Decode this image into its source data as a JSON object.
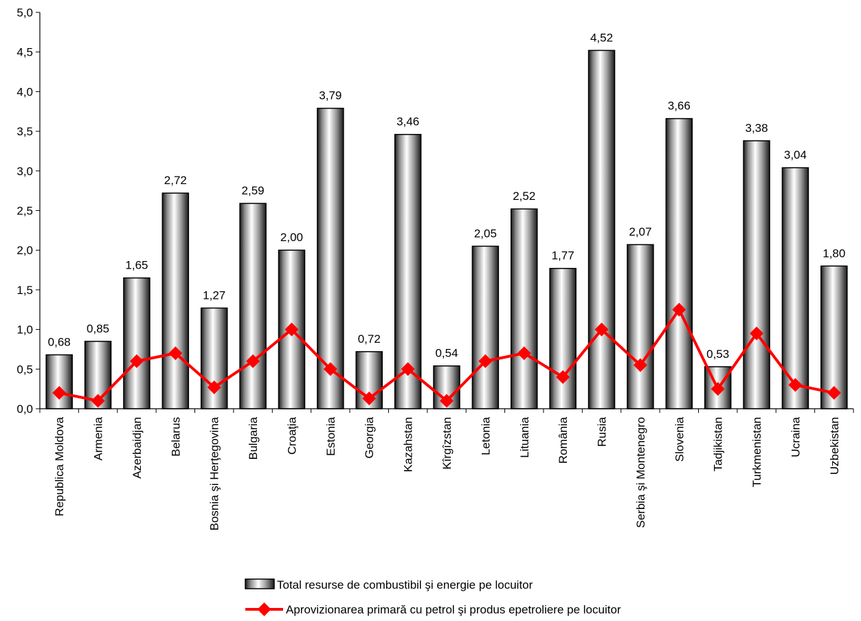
{
  "chart_data": {
    "type": "bar",
    "categories": [
      "Republica Moldova",
      "Armenia",
      "Azerbaidjan",
      "Belarus",
      "Bosnia şi Herţegovina",
      "Bulgaria",
      "Croaţia",
      "Estonia",
      "Georgia",
      "Kazahstan",
      "Kîrgîzstan",
      "Letonia",
      "Lituania",
      "România",
      "Rusia",
      "Serbia şi Montenegro",
      "Slovenia",
      "Tadjikistan",
      "Turkmenistan",
      "Ucraina",
      "Uzbekistan"
    ],
    "series": [
      {
        "name": "Total resurse de combustibil şi energie pe locuitor",
        "type": "bar",
        "values": [
          0.68,
          0.85,
          1.65,
          2.72,
          1.27,
          2.59,
          2.0,
          3.79,
          0.72,
          3.46,
          0.54,
          2.05,
          2.52,
          1.77,
          4.52,
          2.07,
          3.66,
          0.53,
          3.38,
          3.04,
          1.8
        ],
        "data_labels": [
          "0,68",
          "0,85",
          "1,65",
          "2,72",
          "1,27",
          "2,59",
          "2,00",
          "3,79",
          "0,72",
          "3,46",
          "0,54",
          "2,05",
          "2,52",
          "1,77",
          "4,52",
          "2,07",
          "3,66",
          "0,53",
          "3,38",
          "3,04",
          "1,80"
        ]
      },
      {
        "name": "Aprovizionarea primară cu petrol şi produs epetroliere pe locuitor",
        "type": "line",
        "color": "#ff0000",
        "marker": "diamond",
        "values": [
          0.2,
          0.1,
          0.6,
          0.7,
          0.27,
          0.6,
          1.0,
          0.5,
          0.13,
          0.5,
          0.1,
          0.6,
          0.7,
          0.4,
          1.0,
          0.55,
          1.25,
          0.25,
          0.95,
          0.3,
          0.2
        ]
      }
    ],
    "ylim": [
      0,
      5
    ],
    "yticks": [
      0,
      0.5,
      1,
      1.5,
      2,
      2.5,
      3,
      3.5,
      4,
      4.5,
      5
    ],
    "ytick_labels": [
      "0,0",
      "0,5",
      "1,0",
      "1,5",
      "2,0",
      "2,5",
      "3,0",
      "3,5",
      "4,0",
      "4,5",
      "5,0"
    ],
    "grid": false,
    "legend_position": "bottom",
    "title": "",
    "xlabel": "",
    "ylabel": ""
  }
}
